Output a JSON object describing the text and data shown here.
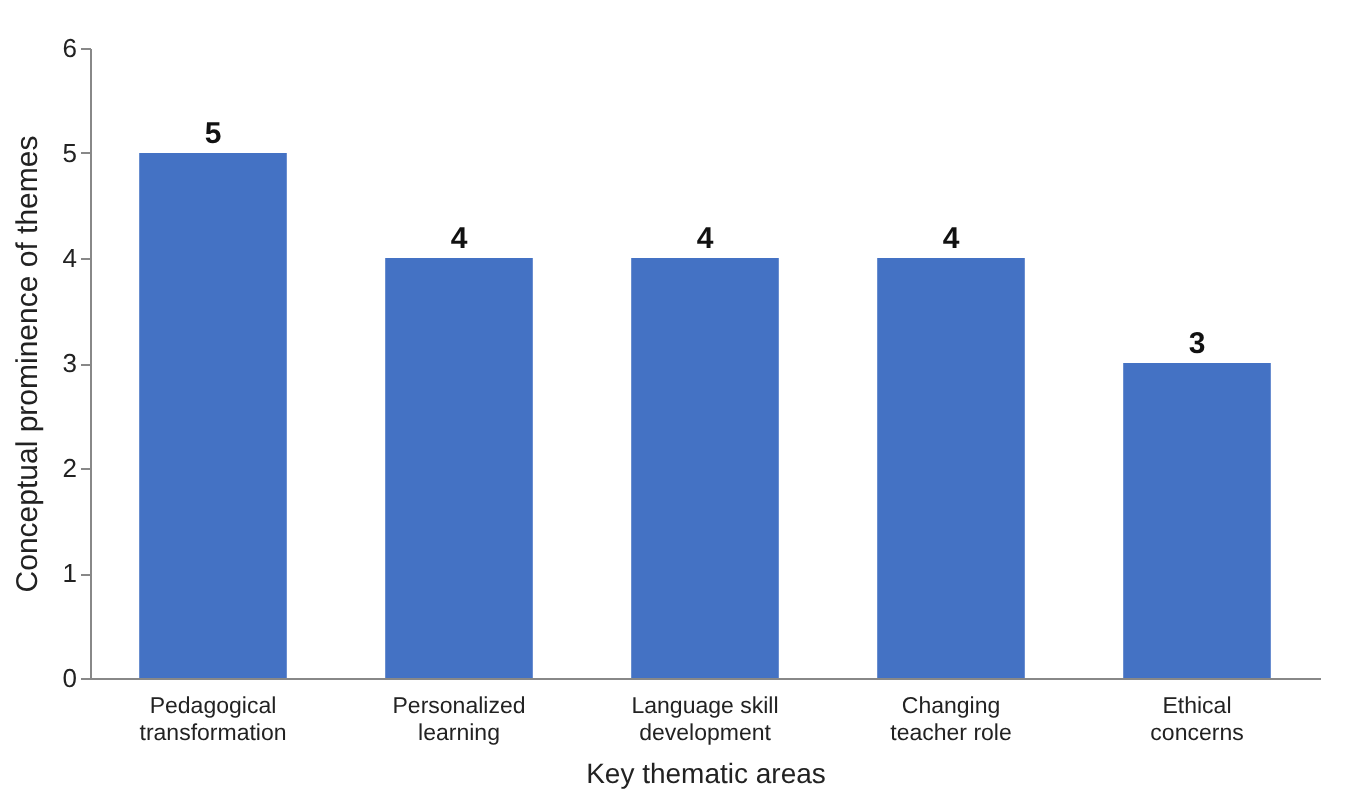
{
  "chart_data": {
    "type": "bar",
    "xlabel": "Key thematic areas",
    "ylabel": "Conceptual prominence of themes",
    "categories": [
      "Pedagogical transformation",
      "Personalized learning",
      "Language skill development",
      "Changing teacher role",
      "Ethical concerns"
    ],
    "values": [
      5,
      4,
      4,
      4,
      3
    ],
    "color": "#4472c4",
    "ylim": [
      0,
      6
    ],
    "yticks": [
      0,
      1,
      2,
      3,
      4,
      5,
      6
    ],
    "data_labels": true
  }
}
